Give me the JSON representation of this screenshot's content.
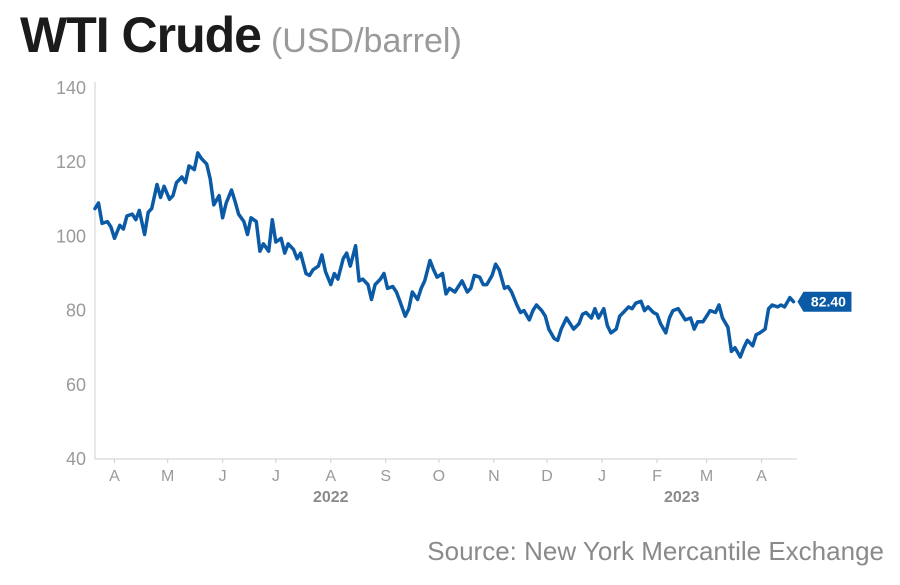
{
  "header": {
    "title": "WTI Crude",
    "unit": "(USD/barrel)"
  },
  "footer": {
    "source": "Source: New York Mercantile Exchange"
  },
  "colors": {
    "line": "#0b5aa6",
    "axis_text": "#9a9a9a",
    "axis_line": "#cfcfcf",
    "label_bg": "#0b5aa6",
    "label_text": "#ffffff"
  },
  "chart_data": {
    "type": "line",
    "title": "WTI Crude",
    "subtitle": "(USD/barrel)",
    "ylabel": "",
    "xlabel": "",
    "ylim": [
      40,
      140
    ],
    "yticks": [
      40,
      60,
      80,
      100,
      120,
      140
    ],
    "xlim": [
      "2022-03-21",
      "2023-04-21"
    ],
    "grid": false,
    "month_ticks": [
      {
        "label": "A",
        "date": "2022-04-01"
      },
      {
        "label": "M",
        "date": "2022-05-01"
      },
      {
        "label": "J",
        "date": "2022-06-01"
      },
      {
        "label": "J",
        "date": "2022-07-01"
      },
      {
        "label": "A",
        "date": "2022-08-01"
      },
      {
        "label": "S",
        "date": "2022-09-01"
      },
      {
        "label": "O",
        "date": "2022-10-01"
      },
      {
        "label": "N",
        "date": "2022-11-01"
      },
      {
        "label": "D",
        "date": "2022-12-01"
      },
      {
        "label": "J",
        "date": "2023-01-01"
      },
      {
        "label": "F",
        "date": "2023-02-01"
      },
      {
        "label": "M",
        "date": "2023-03-01"
      },
      {
        "label": "A",
        "date": "2023-04-01"
      }
    ],
    "year_labels": [
      {
        "label": "2022",
        "date": "2022-08-01"
      },
      {
        "label": "2023",
        "date": "2023-02-15"
      }
    ],
    "last_value_label": "82.40",
    "series": [
      {
        "x": [
          "2022-03-21",
          "2022-03-23",
          "2022-03-25",
          "2022-03-28",
          "2022-03-30",
          "2022-04-01",
          "2022-04-04",
          "2022-04-06",
          "2022-04-08",
          "2022-04-11",
          "2022-04-13",
          "2022-04-15",
          "2022-04-18",
          "2022-04-20",
          "2022-04-22",
          "2022-04-25",
          "2022-04-27",
          "2022-04-29",
          "2022-05-02",
          "2022-05-04",
          "2022-05-06",
          "2022-05-09",
          "2022-05-11",
          "2022-05-13",
          "2022-05-16",
          "2022-05-18",
          "2022-05-20",
          "2022-05-23",
          "2022-05-25",
          "2022-05-27",
          "2022-05-30",
          "2022-06-01",
          "2022-06-03",
          "2022-06-06",
          "2022-06-08",
          "2022-06-10",
          "2022-06-13",
          "2022-06-15",
          "2022-06-17",
          "2022-06-20",
          "2022-06-22",
          "2022-06-24",
          "2022-06-27",
          "2022-06-29",
          "2022-07-01",
          "2022-07-04",
          "2022-07-06",
          "2022-07-08",
          "2022-07-11",
          "2022-07-13",
          "2022-07-15",
          "2022-07-18",
          "2022-07-20",
          "2022-07-22",
          "2022-07-25",
          "2022-07-27",
          "2022-07-29",
          "2022-08-01",
          "2022-08-03",
          "2022-08-05",
          "2022-08-08",
          "2022-08-10",
          "2022-08-12",
          "2022-08-15",
          "2022-08-17",
          "2022-08-19",
          "2022-08-22",
          "2022-08-24",
          "2022-08-26",
          "2022-08-29",
          "2022-08-31",
          "2022-09-02",
          "2022-09-05",
          "2022-09-07",
          "2022-09-09",
          "2022-09-12",
          "2022-09-14",
          "2022-09-16",
          "2022-09-19",
          "2022-09-21",
          "2022-09-23",
          "2022-09-26",
          "2022-09-28",
          "2022-09-30",
          "2022-10-03",
          "2022-10-05",
          "2022-10-07",
          "2022-10-10",
          "2022-10-12",
          "2022-10-14",
          "2022-10-17",
          "2022-10-19",
          "2022-10-21",
          "2022-10-24",
          "2022-10-26",
          "2022-10-28",
          "2022-10-31",
          "2022-11-02",
          "2022-11-04",
          "2022-11-07",
          "2022-11-09",
          "2022-11-11",
          "2022-11-14",
          "2022-11-16",
          "2022-11-18",
          "2022-11-21",
          "2022-11-23",
          "2022-11-25",
          "2022-11-28",
          "2022-11-30",
          "2022-12-02",
          "2022-12-05",
          "2022-12-07",
          "2022-12-09",
          "2022-12-12",
          "2022-12-14",
          "2022-12-16",
          "2022-12-19",
          "2022-12-21",
          "2022-12-23",
          "2022-12-26",
          "2022-12-28",
          "2022-12-30",
          "2023-01-02",
          "2023-01-04",
          "2023-01-06",
          "2023-01-09",
          "2023-01-11",
          "2023-01-13",
          "2023-01-16",
          "2023-01-18",
          "2023-01-20",
          "2023-01-23",
          "2023-01-25",
          "2023-01-27",
          "2023-01-30",
          "2023-02-01",
          "2023-02-03",
          "2023-02-06",
          "2023-02-08",
          "2023-02-10",
          "2023-02-13",
          "2023-02-15",
          "2023-02-17",
          "2023-02-20",
          "2023-02-22",
          "2023-02-24",
          "2023-02-27",
          "2023-03-01",
          "2023-03-03",
          "2023-03-06",
          "2023-03-08",
          "2023-03-10",
          "2023-03-13",
          "2023-03-15",
          "2023-03-17",
          "2023-03-20",
          "2023-03-22",
          "2023-03-24",
          "2023-03-27",
          "2023-03-29",
          "2023-03-31",
          "2023-04-03",
          "2023-04-05",
          "2023-04-07",
          "2023-04-10",
          "2023-04-12",
          "2023-04-14",
          "2023-04-17",
          "2023-04-19"
        ],
        "values": [
          107.5,
          109.0,
          103.5,
          104.0,
          102.5,
          99.5,
          103.0,
          102.0,
          105.5,
          106.0,
          104.5,
          107.0,
          100.5,
          106.5,
          107.5,
          114.0,
          110.5,
          113.5,
          110.0,
          111.0,
          114.5,
          116.0,
          114.5,
          119.0,
          118.0,
          122.5,
          121.0,
          119.5,
          115.5,
          108.5,
          111.0,
          105.0,
          109.0,
          112.5,
          109.5,
          106.0,
          104.0,
          100.5,
          105.0,
          104.0,
          96.0,
          98.0,
          96.0,
          104.5,
          98.5,
          99.5,
          95.5,
          98.0,
          96.5,
          94.0,
          95.5,
          90.0,
          89.5,
          91.0,
          92.0,
          95.0,
          90.5,
          87.0,
          90.0,
          88.5,
          94.0,
          95.5,
          92.0,
          97.5,
          88.0,
          88.5,
          87.0,
          83.0,
          87.0,
          88.5,
          90.0,
          86.0,
          86.5,
          85.0,
          82.5,
          78.5,
          80.5,
          85.0,
          83.0,
          86.0,
          88.0,
          93.5,
          91.0,
          89.0,
          90.0,
          84.5,
          86.0,
          85.0,
          86.5,
          88.0,
          85.0,
          86.0,
          89.5,
          89.0,
          87.0,
          87.0,
          89.5,
          92.5,
          91.0,
          86.0,
          86.5,
          85.0,
          81.5,
          79.5,
          80.0,
          77.5,
          80.0,
          81.5,
          80.0,
          78.5,
          75.0,
          72.5,
          72.0,
          75.0,
          78.0,
          76.5,
          75.0,
          76.5,
          79.0,
          79.5,
          78.0,
          80.5,
          78.0,
          80.5,
          76.0,
          74.0,
          75.0,
          78.5,
          79.5,
          81.0,
          80.5,
          82.0,
          82.5,
          80.0,
          81.0,
          79.5,
          79.0,
          76.5,
          74.0,
          78.0,
          80.0,
          80.5,
          79.0,
          77.5,
          78.0,
          75.0,
          77.0,
          77.0,
          78.5,
          80.0,
          79.5,
          81.5,
          78.0,
          75.5,
          69.0,
          70.0,
          67.5,
          70.0,
          72.0,
          70.5,
          73.5,
          74.0,
          75.0,
          80.5,
          81.5,
          81.0,
          81.5,
          81.0,
          83.5,
          82.4
        ]
      }
    ]
  }
}
